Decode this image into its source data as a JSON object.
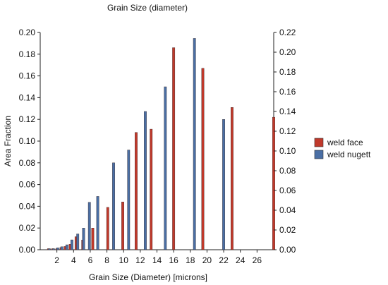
{
  "chart_data": {
    "type": "bar",
    "title": "Grain Size (diameter)",
    "xlabel": "Grain Size (Diameter) [microns]",
    "ylabel": "Area Fraction",
    "xlim": [
      0,
      28
    ],
    "x_ticks": [
      2,
      4,
      6,
      8,
      10,
      12,
      14,
      16,
      18,
      20,
      22,
      24,
      26
    ],
    "ylim_left": [
      0,
      0.2
    ],
    "y_ticks_left": [
      "0.00",
      "0.02",
      "0.04",
      "0.06",
      "0.08",
      "0.10",
      "0.12",
      "0.14",
      "0.16",
      "0.18",
      "0.20"
    ],
    "ylim_right": [
      0,
      0.22
    ],
    "y_ticks_right": [
      "0.00",
      "0.02",
      "0.04",
      "0.06",
      "0.08",
      "0.10",
      "0.12",
      "0.14",
      "0.16",
      "0.18",
      "0.20",
      "0.22"
    ],
    "grid": false,
    "legend_position": "right",
    "series": [
      {
        "name": "weld face",
        "color": "#c0392b",
        "axis": "left",
        "points": [
          {
            "x": 1.0,
            "y": 0.001
          },
          {
            "x": 1.5,
            "y": 0.001
          },
          {
            "x": 2.0,
            "y": 0.001
          },
          {
            "x": 2.5,
            "y": 0.002
          },
          {
            "x": 3.0,
            "y": 0.003
          },
          {
            "x": 3.6,
            "y": 0.005
          },
          {
            "x": 4.3,
            "y": 0.012
          },
          {
            "x": 5.1,
            "y": 0.009
          },
          {
            "x": 6.3,
            "y": 0.02
          },
          {
            "x": 8.1,
            "y": 0.039
          },
          {
            "x": 9.9,
            "y": 0.044
          },
          {
            "x": 11.5,
            "y": 0.108
          },
          {
            "x": 13.3,
            "y": 0.111
          },
          {
            "x": 16.0,
            "y": 0.186
          },
          {
            "x": 19.5,
            "y": 0.167
          },
          {
            "x": 23.0,
            "y": 0.131
          },
          {
            "x": 28.0,
            "y": 0.122
          }
        ]
      },
      {
        "name": "weld nugett",
        "color": "#4a6fa5",
        "axis": "right",
        "points": [
          {
            "x": 1.1,
            "y": 0.001
          },
          {
            "x": 1.6,
            "y": 0.001
          },
          {
            "x": 2.1,
            "y": 0.002
          },
          {
            "x": 2.6,
            "y": 0.003
          },
          {
            "x": 3.2,
            "y": 0.005
          },
          {
            "x": 3.8,
            "y": 0.01
          },
          {
            "x": 4.5,
            "y": 0.016
          },
          {
            "x": 5.2,
            "y": 0.022
          },
          {
            "x": 5.9,
            "y": 0.048
          },
          {
            "x": 6.9,
            "y": 0.054
          },
          {
            "x": 8.8,
            "y": 0.088
          },
          {
            "x": 10.6,
            "y": 0.101
          },
          {
            "x": 12.6,
            "y": 0.14
          },
          {
            "x": 15.0,
            "y": 0.165
          },
          {
            "x": 18.5,
            "y": 0.214
          },
          {
            "x": 22.0,
            "y": 0.132
          }
        ]
      }
    ]
  }
}
